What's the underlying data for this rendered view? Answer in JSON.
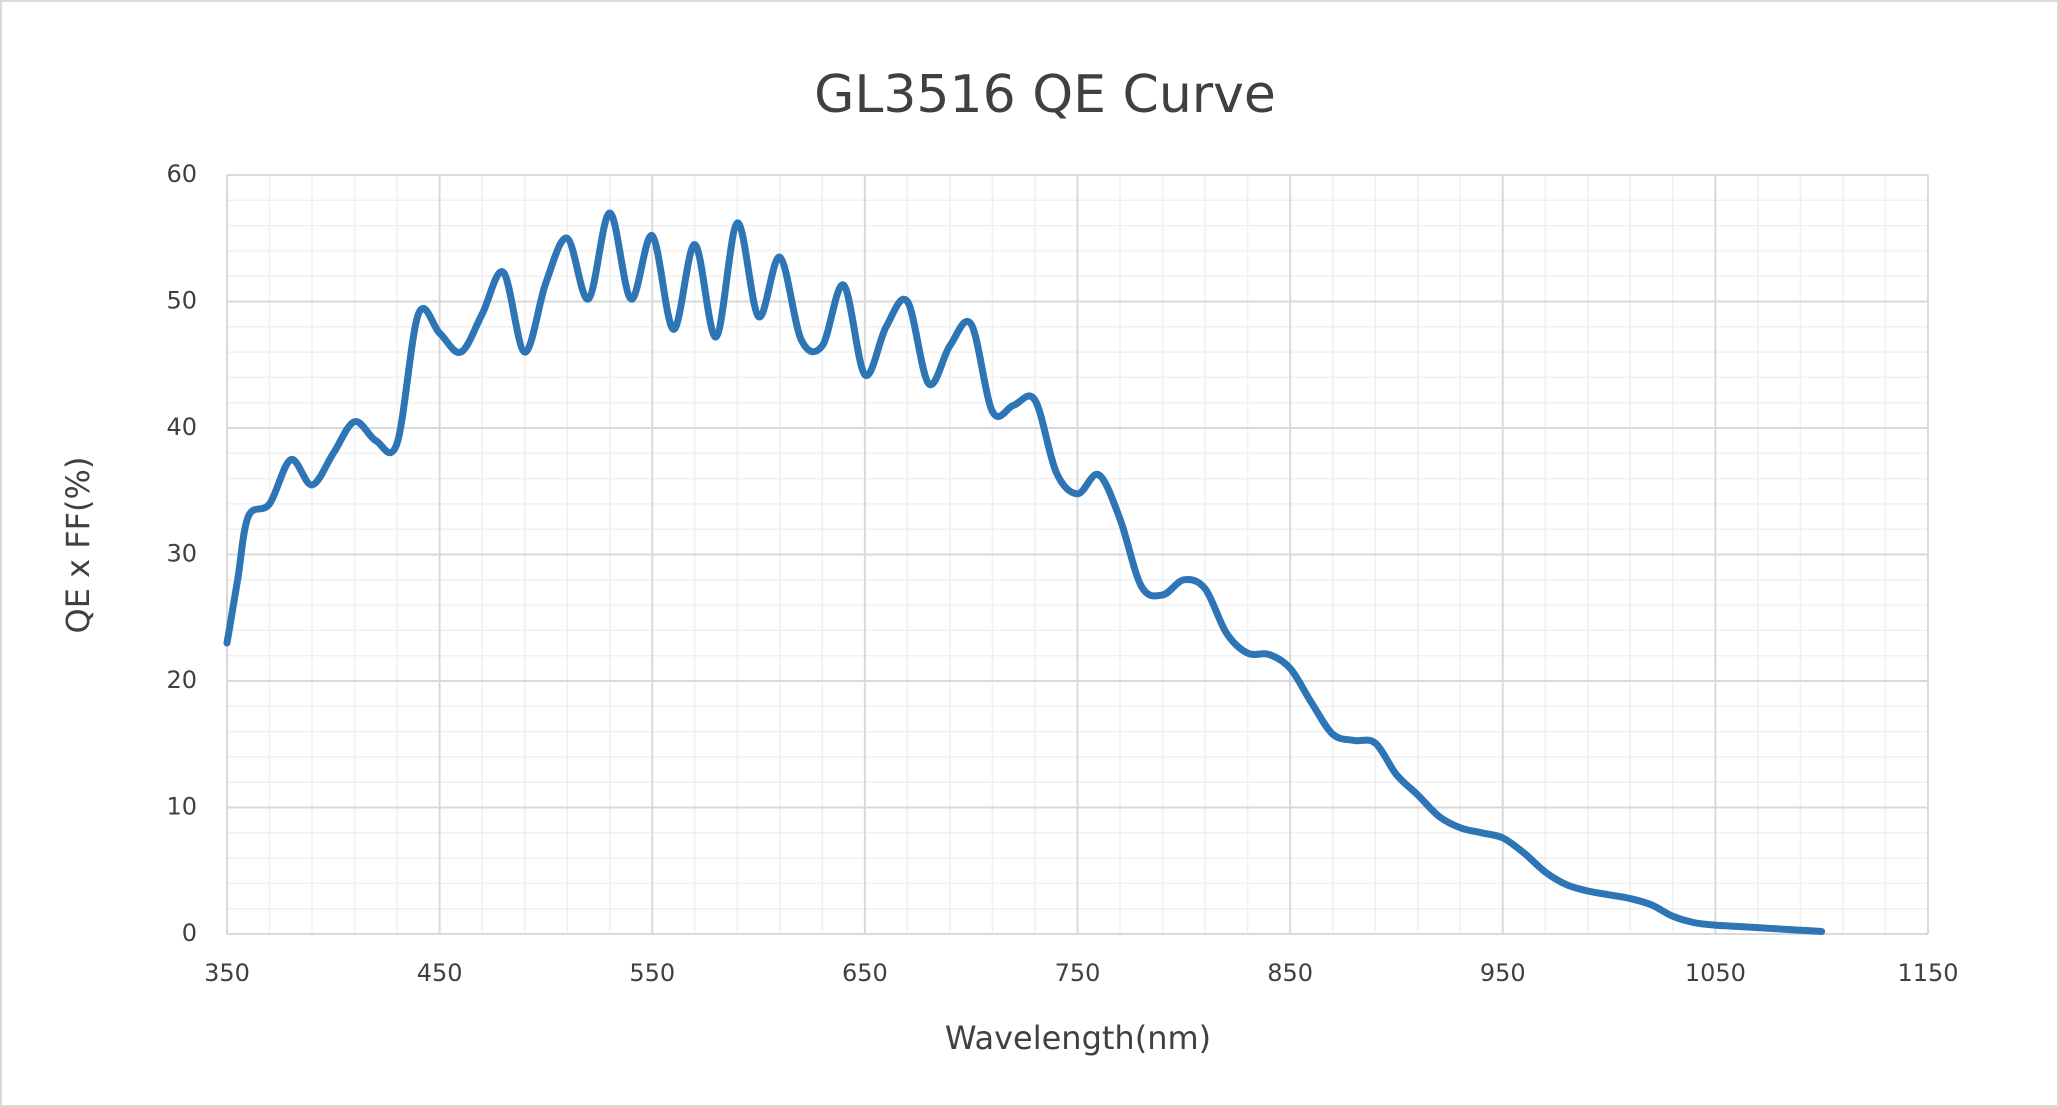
{
  "chart_data": {
    "type": "line",
    "title": "GL3516 QE  Curve",
    "x_label": "Wavelength(nm)",
    "y_label": "QE x FF(%)",
    "x": [
      350,
      355,
      360,
      370,
      380,
      390,
      400,
      410,
      420,
      430,
      440,
      450,
      460,
      470,
      480,
      490,
      500,
      510,
      520,
      530,
      540,
      550,
      560,
      570,
      580,
      590,
      600,
      610,
      620,
      630,
      640,
      650,
      660,
      670,
      680,
      690,
      700,
      710,
      720,
      730,
      740,
      750,
      760,
      770,
      780,
      790,
      800,
      810,
      820,
      830,
      840,
      850,
      860,
      870,
      880,
      890,
      900,
      910,
      920,
      930,
      940,
      950,
      960,
      970,
      980,
      990,
      1000,
      1010,
      1020,
      1030,
      1040,
      1050,
      1060,
      1070,
      1080,
      1090,
      1100
    ],
    "values": [
      23,
      28,
      33,
      34,
      37.5,
      35.5,
      38,
      40.5,
      39,
      38.8,
      49,
      47.5,
      46,
      49,
      52.3,
      46,
      51.5,
      55,
      50.2,
      57,
      50.2,
      55.2,
      47.8,
      54.5,
      47.2,
      56.2,
      48.8,
      53.5,
      47,
      46.5,
      51.3,
      44.2,
      48,
      50,
      43.5,
      46.5,
      48.2,
      41.3,
      41.8,
      42.2,
      36.5,
      34.8,
      36.3,
      32.8,
      27.5,
      26.8,
      28,
      27.3,
      23.8,
      22.2,
      22.1,
      21,
      18.3,
      15.8,
      15.3,
      15.1,
      12.6,
      11,
      9.3,
      8.4,
      8,
      7.6,
      6.4,
      4.9,
      3.9,
      3.4,
      3.1,
      2.8,
      2.3,
      1.4,
      0.9,
      0.7,
      0.6,
      0.5,
      0.4,
      0.3,
      0.2
    ],
    "color": "#2e75b6",
    "xlim": [
      350,
      1150
    ],
    "xticks": [
      350,
      450,
      550,
      650,
      750,
      850,
      950,
      1050,
      1150
    ],
    "ylim": [
      0,
      60
    ],
    "yticks": [
      0,
      10,
      20,
      30,
      40,
      50,
      60
    ],
    "grid": true,
    "minor_grid": true
  }
}
